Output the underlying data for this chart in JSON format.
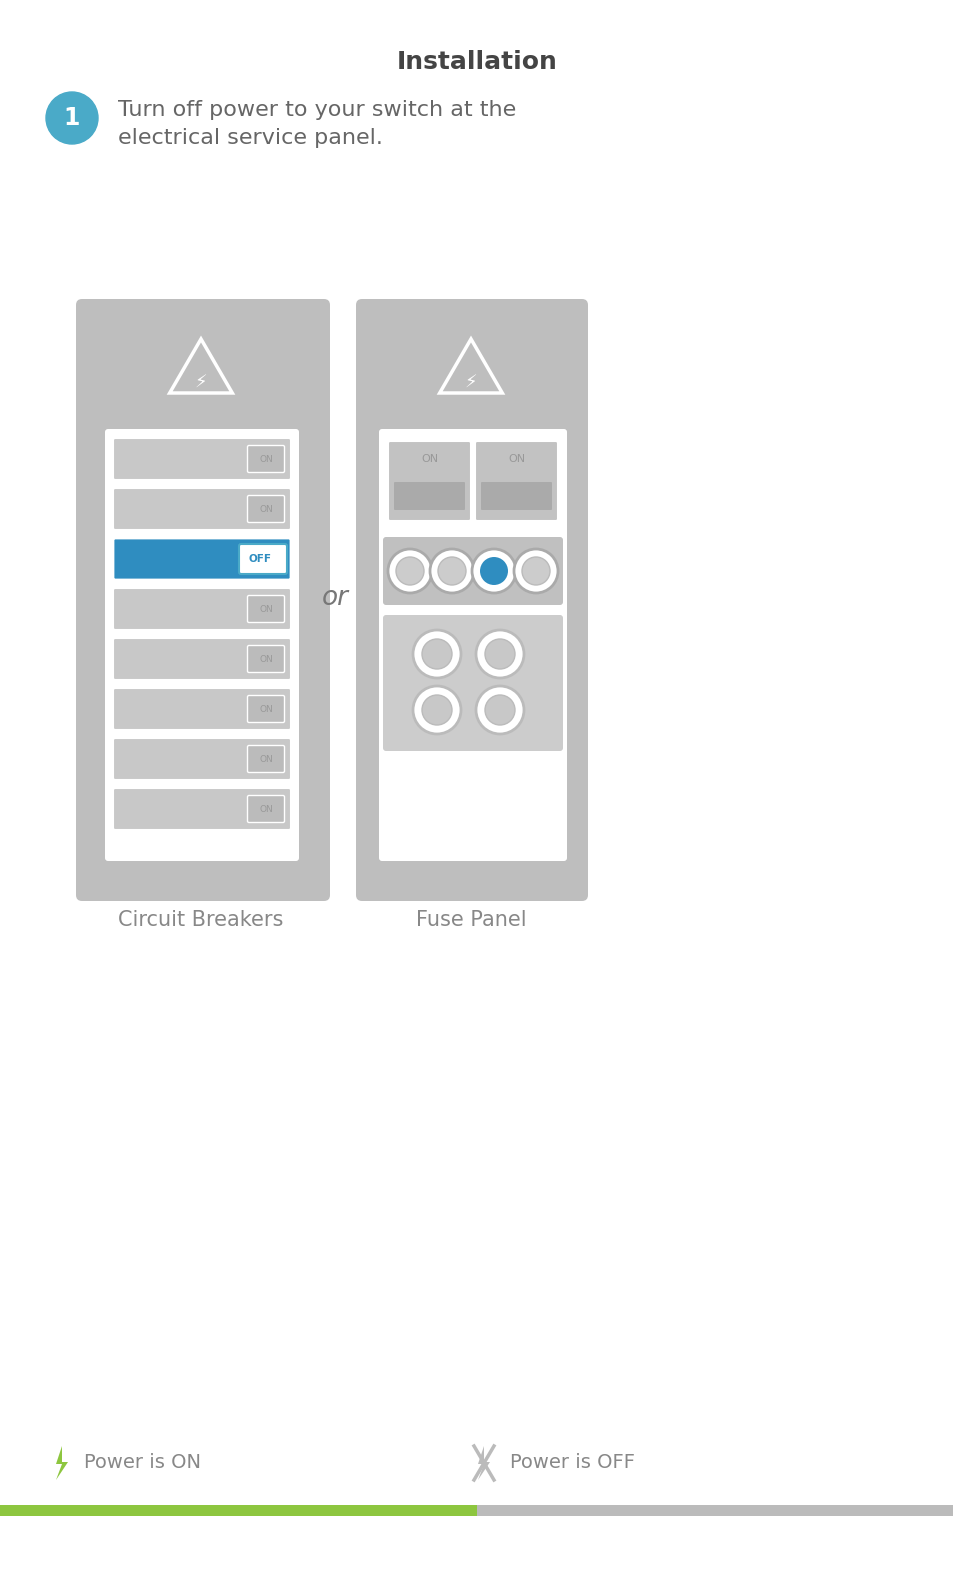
{
  "title": "Installation",
  "title_fontsize": 18,
  "title_color": "#444444",
  "step1_circle_color": "#4AAAC8",
  "step1_text_line1": "Turn off power to your switch at the",
  "step1_text_line2": "electrical service panel.",
  "step1_fontsize": 16,
  "step1_text_color": "#666666",
  "panel_bg_color": "#BEBEBE",
  "panel_white": "#FFFFFF",
  "breaker_blue": "#2F8DC0",
  "breaker_blue_border": "#4AAAC8",
  "fuse_blue_circle": "#2F8DC0",
  "or_text_color": "#777777",
  "label_color": "#888888",
  "label_fontsize": 15,
  "power_on_color": "#8DC63F",
  "power_off_color": "#BBBBBB",
  "background_color": "#FFFFFF"
}
